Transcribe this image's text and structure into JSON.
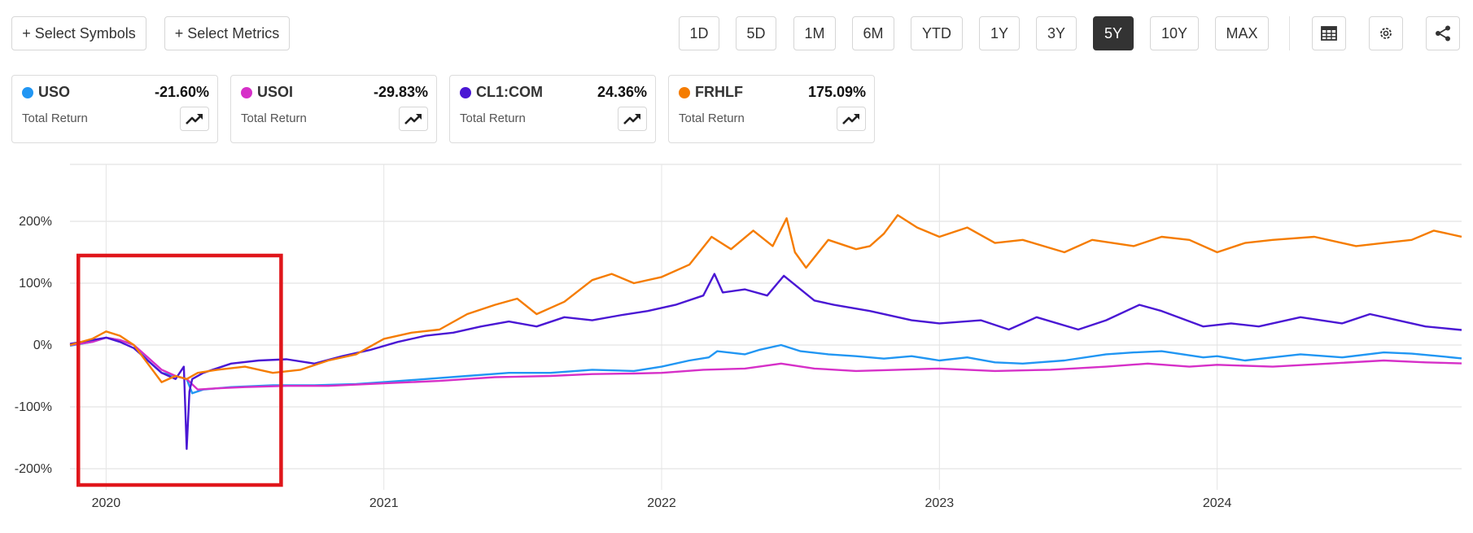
{
  "toolbar": {
    "select_symbols": "+ Select Symbols",
    "select_metrics": "+ Select Metrics",
    "ranges": [
      "1D",
      "5D",
      "1M",
      "6M",
      "YTD",
      "1Y",
      "3Y",
      "5Y",
      "10Y",
      "MAX"
    ],
    "active_range": "5Y",
    "icons": [
      "table-icon",
      "gear-icon",
      "share-icon"
    ]
  },
  "cards": [
    {
      "symbol": "USO",
      "return": "-21.60%",
      "label": "Total Return",
      "color": "#2196f3"
    },
    {
      "symbol": "USOI",
      "return": "-29.83%",
      "label": "Total Return",
      "color": "#d630c8"
    },
    {
      "symbol": "CL1:COM",
      "return": "24.36%",
      "label": "Total Return",
      "color": "#4a17d4"
    },
    {
      "symbol": "FRHLF",
      "return": "175.09%",
      "label": "Total Return",
      "color": "#f57c00"
    }
  ],
  "chart_data": {
    "type": "line",
    "y_ticks": [
      "200%",
      "100%",
      "0%",
      "-100%",
      "-200%"
    ],
    "y_tick_values": [
      200,
      100,
      0,
      -100,
      -200
    ],
    "x_ticks": [
      "2020",
      "2021",
      "2022",
      "2023",
      "2024"
    ],
    "x_tick_values": [
      2020.0,
      2021.0,
      2022.0,
      2023.0,
      2024.0
    ],
    "xlim": [
      2019.87,
      2024.88
    ],
    "ylim": [
      -220,
      302
    ],
    "grid": true,
    "highlight_box": {
      "x0": 2019.9,
      "x1": 2020.63,
      "color": "#e0161b"
    },
    "series": [
      {
        "name": "USO",
        "color": "#2196f3",
        "x": [
          2019.87,
          2019.95,
          2020.0,
          2020.05,
          2020.1,
          2020.15,
          2020.2,
          2020.25,
          2020.29,
          2020.31,
          2020.35,
          2020.45,
          2020.6,
          2020.75,
          2020.9,
          2021.0,
          2021.15,
          2021.3,
          2021.45,
          2021.6,
          2021.75,
          2021.9,
          2022.0,
          2022.1,
          2022.17,
          2022.2,
          2022.3,
          2022.35,
          2022.43,
          2022.5,
          2022.6,
          2022.7,
          2022.8,
          2022.9,
          2023.0,
          2023.1,
          2023.2,
          2023.3,
          2023.45,
          2023.6,
          2023.7,
          2023.8,
          2023.95,
          2024.0,
          2024.1,
          2024.2,
          2024.3,
          2024.45,
          2024.6,
          2024.7,
          2024.8,
          2024.88
        ],
        "values": [
          -1,
          5,
          12,
          8,
          0,
          -25,
          -45,
          -50,
          -55,
          -78,
          -72,
          -68,
          -65,
          -65,
          -63,
          -60,
          -55,
          -50,
          -45,
          -45,
          -40,
          -42,
          -35,
          -25,
          -20,
          -10,
          -15,
          -8,
          0,
          -10,
          -15,
          -18,
          -22,
          -18,
          -25,
          -20,
          -28,
          -30,
          -25,
          -15,
          -12,
          -10,
          -20,
          -18,
          -25,
          -20,
          -15,
          -20,
          -12,
          -14,
          -18,
          -21.6
        ]
      },
      {
        "name": "USOI",
        "color": "#d630c8",
        "x": [
          2019.87,
          2019.95,
          2020.0,
          2020.05,
          2020.1,
          2020.15,
          2020.2,
          2020.25,
          2020.29,
          2020.33,
          2020.4,
          2020.5,
          2020.65,
          2020.8,
          2021.0,
          2021.2,
          2021.4,
          2021.6,
          2021.75,
          2021.9,
          2022.0,
          2022.15,
          2022.3,
          2022.43,
          2022.55,
          2022.7,
          2022.85,
          2023.0,
          2023.2,
          2023.4,
          2023.6,
          2023.75,
          2023.9,
          2024.0,
          2024.2,
          2024.4,
          2024.6,
          2024.75,
          2024.88
        ],
        "values": [
          0,
          5,
          12,
          8,
          0,
          -20,
          -40,
          -50,
          -55,
          -72,
          -70,
          -68,
          -66,
          -66,
          -62,
          -58,
          -52,
          -50,
          -47,
          -46,
          -45,
          -40,
          -38,
          -30,
          -38,
          -42,
          -40,
          -38,
          -42,
          -40,
          -35,
          -30,
          -35,
          -32,
          -35,
          -30,
          -25,
          -28,
          -29.8
        ]
      },
      {
        "name": "CL1:COM",
        "color": "#4a17d4",
        "x": [
          2019.87,
          2019.95,
          2020.0,
          2020.05,
          2020.1,
          2020.15,
          2020.2,
          2020.25,
          2020.28,
          2020.29,
          2020.3,
          2020.31,
          2020.35,
          2020.45,
          2020.55,
          2020.65,
          2020.75,
          2020.85,
          2020.95,
          2021.05,
          2021.15,
          2021.25,
          2021.35,
          2021.45,
          2021.55,
          2021.65,
          2021.75,
          2021.85,
          2021.95,
          2022.05,
          2022.15,
          2022.19,
          2022.22,
          2022.3,
          2022.38,
          2022.44,
          2022.5,
          2022.55,
          2022.62,
          2022.75,
          2022.9,
          2023.0,
          2023.15,
          2023.25,
          2023.35,
          2023.5,
          2023.6,
          2023.72,
          2023.8,
          2023.95,
          2024.05,
          2024.15,
          2024.3,
          2024.45,
          2024.55,
          2024.65,
          2024.75,
          2024.88
        ],
        "values": [
          2,
          8,
          12,
          5,
          -5,
          -25,
          -45,
          -55,
          -35,
          -168,
          -75,
          -55,
          -45,
          -30,
          -25,
          -23,
          -30,
          -18,
          -8,
          5,
          15,
          20,
          30,
          38,
          30,
          45,
          40,
          48,
          55,
          65,
          80,
          115,
          85,
          90,
          80,
          112,
          90,
          72,
          65,
          55,
          40,
          35,
          40,
          25,
          45,
          25,
          40,
          65,
          55,
          30,
          35,
          30,
          45,
          35,
          50,
          40,
          30,
          24.4
        ]
      },
      {
        "name": "FRHLF",
        "color": "#f57c00",
        "x": [
          2019.87,
          2019.95,
          2020.0,
          2020.05,
          2020.1,
          2020.15,
          2020.2,
          2020.25,
          2020.29,
          2020.33,
          2020.4,
          2020.5,
          2020.6,
          2020.7,
          2020.8,
          2020.9,
          2021.0,
          2021.1,
          2021.2,
          2021.3,
          2021.4,
          2021.48,
          2021.55,
          2021.65,
          2021.75,
          2021.82,
          2021.9,
          2022.0,
          2022.1,
          2022.18,
          2022.25,
          2022.33,
          2022.4,
          2022.45,
          2022.48,
          2022.52,
          2022.6,
          2022.7,
          2022.75,
          2022.8,
          2022.85,
          2022.92,
          2023.0,
          2023.1,
          2023.2,
          2023.3,
          2023.45,
          2023.55,
          2023.7,
          2023.8,
          2023.9,
          2024.0,
          2024.1,
          2024.2,
          2024.35,
          2024.5,
          2024.6,
          2024.7,
          2024.78,
          2024.88
        ],
        "values": [
          0,
          10,
          22,
          15,
          0,
          -30,
          -60,
          -50,
          -55,
          -45,
          -40,
          -35,
          -45,
          -40,
          -25,
          -15,
          10,
          20,
          25,
          50,
          65,
          75,
          50,
          70,
          105,
          115,
          100,
          110,
          130,
          175,
          155,
          185,
          160,
          205,
          150,
          125,
          170,
          155,
          160,
          180,
          210,
          190,
          175,
          190,
          165,
          170,
          150,
          170,
          160,
          175,
          170,
          150,
          165,
          170,
          175,
          160,
          165,
          170,
          185,
          175.1
        ]
      }
    ]
  }
}
